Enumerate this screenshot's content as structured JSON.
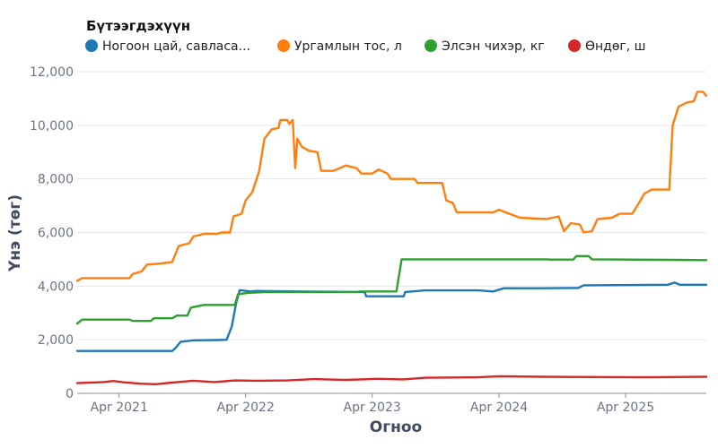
{
  "chart_data": {
    "type": "line",
    "legend_title": "Бүтээгдэхүүн",
    "legend_position": "top-left",
    "xlabel": "Огноо",
    "ylabel": "Үнэ (төг)",
    "ylim": [
      0,
      12000
    ],
    "y_ticks": [
      0,
      2000,
      4000,
      6000,
      8000,
      10000,
      12000
    ],
    "y_tick_labels": [
      "0",
      "2,000",
      "4,000",
      "6,000",
      "8,000",
      "10,000",
      "12,000"
    ],
    "x_range": [
      "2020-12-01",
      "2025-11-20"
    ],
    "x_ticks": [
      "2021-04-01",
      "2022-04-01",
      "2023-04-01",
      "2024-04-01",
      "2025-04-01"
    ],
    "x_tick_labels": [
      "Apr 2021",
      "Apr 2022",
      "Apr 2023",
      "Apr 2024",
      "Apr 2025"
    ],
    "grid": "horizontal",
    "series": [
      {
        "name": "Ногоон цай, савласа...",
        "color": "#1f77b4",
        "points": [
          [
            "2020-12-01",
            1580
          ],
          [
            "2021-09-01",
            1580
          ],
          [
            "2021-09-10",
            1680
          ],
          [
            "2021-09-25",
            1920
          ],
          [
            "2021-11-01",
            1980
          ],
          [
            "2022-01-10",
            1990
          ],
          [
            "2022-02-05",
            2000
          ],
          [
            "2022-02-20",
            2500
          ],
          [
            "2022-03-05",
            3400
          ],
          [
            "2022-03-15",
            3850
          ],
          [
            "2022-04-15",
            3800
          ],
          [
            "2022-05-01",
            3820
          ],
          [
            "2022-09-01",
            3800
          ],
          [
            "2023-03-10",
            3780
          ],
          [
            "2023-03-15",
            3620
          ],
          [
            "2023-07-01",
            3620
          ],
          [
            "2023-07-05",
            3780
          ],
          [
            "2023-09-01",
            3840
          ],
          [
            "2024-02-01",
            3840
          ],
          [
            "2024-03-15",
            3800
          ],
          [
            "2024-04-15",
            3920
          ],
          [
            "2024-08-01",
            3920
          ],
          [
            "2024-11-15",
            3930
          ],
          [
            "2024-12-01",
            4030
          ],
          [
            "2025-08-01",
            4050
          ],
          [
            "2025-08-20",
            4130
          ],
          [
            "2025-09-05",
            4050
          ],
          [
            "2025-11-20",
            4050
          ]
        ]
      },
      {
        "name": "Ургамлын тос, л",
        "color": "#ff7f0e",
        "points": [
          [
            "2020-12-01",
            4200
          ],
          [
            "2020-12-15",
            4300
          ],
          [
            "2021-05-01",
            4300
          ],
          [
            "2021-05-10",
            4450
          ],
          [
            "2021-06-05",
            4550
          ],
          [
            "2021-06-20",
            4800
          ],
          [
            "2021-08-01",
            4850
          ],
          [
            "2021-09-01",
            4900
          ],
          [
            "2021-09-20",
            5500
          ],
          [
            "2021-10-20",
            5600
          ],
          [
            "2021-11-01",
            5850
          ],
          [
            "2021-12-01",
            5950
          ],
          [
            "2022-01-10",
            5950
          ],
          [
            "2022-01-20",
            6000
          ],
          [
            "2022-02-15",
            6000
          ],
          [
            "2022-02-25",
            6600
          ],
          [
            "2022-03-20",
            6700
          ],
          [
            "2022-04-01",
            7200
          ],
          [
            "2022-04-20",
            7500
          ],
          [
            "2022-05-10",
            8300
          ],
          [
            "2022-05-25",
            9500
          ],
          [
            "2022-06-15",
            9850
          ],
          [
            "2022-07-05",
            9900
          ],
          [
            "2022-07-10",
            10200
          ],
          [
            "2022-07-30",
            10200
          ],
          [
            "2022-08-05",
            10050
          ],
          [
            "2022-08-15",
            10200
          ],
          [
            "2022-08-22",
            8400
          ],
          [
            "2022-08-28",
            9500
          ],
          [
            "2022-09-10",
            9200
          ],
          [
            "2022-10-01",
            9050
          ],
          [
            "2022-10-25",
            9000
          ],
          [
            "2022-11-05",
            8300
          ],
          [
            "2022-12-10",
            8300
          ],
          [
            "2023-01-15",
            8500
          ],
          [
            "2023-02-15",
            8400
          ],
          [
            "2023-03-01",
            8200
          ],
          [
            "2023-04-01",
            8200
          ],
          [
            "2023-04-20",
            8350
          ],
          [
            "2023-05-15",
            8200
          ],
          [
            "2023-05-25",
            8000
          ],
          [
            "2023-08-01",
            8000
          ],
          [
            "2023-08-10",
            7850
          ],
          [
            "2023-10-20",
            7850
          ],
          [
            "2023-11-01",
            7200
          ],
          [
            "2023-11-20",
            7100
          ],
          [
            "2023-12-01",
            6750
          ],
          [
            "2024-03-15",
            6750
          ],
          [
            "2024-04-01",
            6850
          ],
          [
            "2024-05-01",
            6700
          ],
          [
            "2024-06-01",
            6550
          ],
          [
            "2024-08-15",
            6500
          ],
          [
            "2024-09-20",
            6600
          ],
          [
            "2024-10-05",
            6050
          ],
          [
            "2024-10-25",
            6350
          ],
          [
            "2024-11-20",
            6300
          ],
          [
            "2024-12-01",
            6000
          ],
          [
            "2024-12-25",
            6050
          ],
          [
            "2025-01-10",
            6500
          ],
          [
            "2025-02-20",
            6550
          ],
          [
            "2025-03-15",
            6700
          ],
          [
            "2025-04-20",
            6700
          ],
          [
            "2025-05-05",
            7000
          ],
          [
            "2025-05-25",
            7450
          ],
          [
            "2025-06-15",
            7600
          ],
          [
            "2025-08-05",
            7600
          ],
          [
            "2025-08-15",
            10000
          ],
          [
            "2025-09-01",
            10700
          ],
          [
            "2025-09-25",
            10850
          ],
          [
            "2025-10-15",
            10900
          ],
          [
            "2025-10-25",
            11250
          ],
          [
            "2025-11-10",
            11250
          ],
          [
            "2025-11-20",
            11100
          ]
        ]
      },
      {
        "name": "Элсэн чихэр, кг",
        "color": "#2ca02c",
        "points": [
          [
            "2020-12-01",
            2600
          ],
          [
            "2020-12-15",
            2750
          ],
          [
            "2021-05-01",
            2750
          ],
          [
            "2021-05-10",
            2700
          ],
          [
            "2021-07-01",
            2700
          ],
          [
            "2021-07-10",
            2800
          ],
          [
            "2021-09-01",
            2800
          ],
          [
            "2021-09-15",
            2900
          ],
          [
            "2021-10-15",
            2900
          ],
          [
            "2021-10-25",
            3200
          ],
          [
            "2021-12-01",
            3300
          ],
          [
            "2022-03-01",
            3300
          ],
          [
            "2022-03-10",
            3700
          ],
          [
            "2022-04-10",
            3750
          ],
          [
            "2022-06-01",
            3780
          ],
          [
            "2023-02-15",
            3780
          ],
          [
            "2023-02-25",
            3800
          ],
          [
            "2023-06-10",
            3800
          ],
          [
            "2023-06-25",
            5000
          ],
          [
            "2024-08-15",
            5000
          ],
          [
            "2024-08-25",
            4990
          ],
          [
            "2024-11-01",
            4990
          ],
          [
            "2024-11-10",
            5120
          ],
          [
            "2024-12-15",
            5120
          ],
          [
            "2024-12-25",
            5000
          ],
          [
            "2025-11-20",
            4970
          ]
        ]
      },
      {
        "name": "Өндөг, ш",
        "color": "#d62728",
        "points": [
          [
            "2020-12-01",
            380
          ],
          [
            "2021-02-15",
            420
          ],
          [
            "2021-03-15",
            460
          ],
          [
            "2021-04-15",
            410
          ],
          [
            "2021-06-01",
            360
          ],
          [
            "2021-07-15",
            340
          ],
          [
            "2021-09-01",
            400
          ],
          [
            "2021-11-01",
            470
          ],
          [
            "2022-01-01",
            420
          ],
          [
            "2022-03-01",
            480
          ],
          [
            "2022-05-01",
            470
          ],
          [
            "2022-08-01",
            480
          ],
          [
            "2022-10-15",
            530
          ],
          [
            "2023-01-15",
            500
          ],
          [
            "2023-04-15",
            540
          ],
          [
            "2023-07-01",
            520
          ],
          [
            "2023-09-01",
            580
          ],
          [
            "2024-02-01",
            600
          ],
          [
            "2024-04-01",
            640
          ],
          [
            "2024-08-01",
            620
          ],
          [
            "2025-01-01",
            610
          ],
          [
            "2025-06-01",
            600
          ],
          [
            "2025-11-20",
            620
          ]
        ]
      }
    ]
  }
}
